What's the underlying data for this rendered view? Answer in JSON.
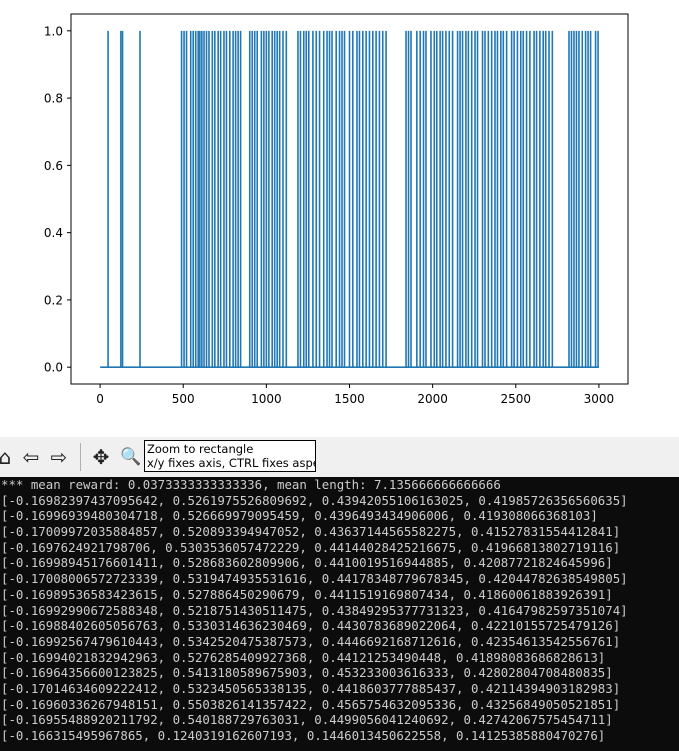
{
  "chart_data": {
    "type": "line",
    "xlim": [
      -175,
      3175
    ],
    "ylim": [
      -0.05,
      1.05
    ],
    "xticks": [
      0,
      500,
      1000,
      1500,
      2000,
      2500,
      3000
    ],
    "xtick_labels": [
      "0",
      "500",
      "1000",
      "1500",
      "2000",
      "2500",
      "3000"
    ],
    "yticks": [
      0.0,
      0.2,
      0.4,
      0.6,
      0.8,
      1.0
    ],
    "ytick_labels": [
      "0.0",
      "0.2",
      "0.4",
      "0.6",
      "0.8",
      "1.0"
    ],
    "line_color": "#1f77b4",
    "grid": false,
    "baseline": 0,
    "x_range": [
      0,
      3000
    ],
    "spike_value": 1,
    "spike_x": [
      48,
      125,
      135,
      240,
      490,
      505,
      520,
      545,
      560,
      575,
      590,
      600,
      612,
      625,
      640,
      655,
      675,
      690,
      710,
      725,
      745,
      760,
      780,
      800,
      815,
      830,
      845,
      900,
      915,
      930,
      945,
      970,
      985,
      1000,
      1015,
      1035,
      1050,
      1065,
      1080,
      1100,
      1120,
      1190,
      1205,
      1225,
      1240,
      1255,
      1280,
      1300,
      1320,
      1345,
      1365,
      1380,
      1395,
      1420,
      1440,
      1455,
      1470,
      1500,
      1520,
      1545,
      1560,
      1580,
      1600,
      1620,
      1640,
      1660,
      1680,
      1700,
      1720,
      1840,
      1855,
      1870,
      1905,
      1925,
      1945,
      1960,
      1990,
      2010,
      2025,
      2045,
      2060,
      2080,
      2100,
      2120,
      2150,
      2165,
      2180,
      2200,
      2215,
      2235,
      2255,
      2270,
      2300,
      2315,
      2335,
      2355,
      2375,
      2390,
      2410,
      2425,
      2445,
      2475,
      2490,
      2510,
      2530,
      2545,
      2565,
      2585,
      2610,
      2625,
      2645,
      2665,
      2680,
      2700,
      2720,
      2820,
      2835,
      2850,
      2865,
      2880,
      2900,
      2920,
      2935,
      2950,
      2980,
      2995
    ]
  },
  "toolbar": {
    "buttons": [
      {
        "name": "home-icon",
        "glyph": "⌂"
      },
      {
        "name": "back-icon",
        "glyph": "⇦"
      },
      {
        "name": "forward-icon",
        "glyph": "⇨"
      },
      {
        "name": "pan-icon",
        "glyph": "✥"
      },
      {
        "name": "zoom-icon",
        "glyph": "🔍"
      }
    ],
    "tooltip": {
      "line1": "Zoom to rectangle",
      "line2": "x/y fixes axis, CTRL fixes aspect"
    }
  },
  "console": {
    "lines": [
      "*** mean reward: 0.0373333333333336, mean length: 7.135666666666666",
      "[-0.16982397437095642, 0.5261975526809692, 0.43942055106163025, 0.41985726356560635]",
      "[-0.16996939480304718, 0.526669979095459, 0.4396493434906006, 0.419308066368103]",
      "[-0.17009972035884857, 0.520893394947052, 0.43637144565582275, 0.41527831554412841]",
      "[-0.1697624921798706, 0.5303536057472229, 0.44144028425216675, 0.41966813802719116]",
      "[-0.16998945176601411, 0.528683602809906, 0.4410019516944885, 0.42087721824645996]",
      "[-0.17008006572723339, 0.5319474935531616, 0.44178348779678345, 0.42044782638549805]",
      "[-0.16989536583423615, 0.527886450290679, 0.4411519169807434, 0.41860061883926391]",
      "[-0.16992990672588348, 0.5218751430511475, 0.43849295377731323, 0.41647982597351074]",
      "[-0.16988402605056763, 0.5330314636230469, 0.4430783689022064, 0.42210155725479126]",
      "[-0.16992567479610443, 0.5342520475387573, 0.4446692168712616, 0.42354613542556761]",
      "[-0.16994021832942963, 0.5276285409927368, 0.44121253490448, 0.41898083686828613]",
      "[-0.16964356600123825, 0.5413180589675903, 0.453233003616333, 0.42802804708480835]",
      "[-0.17014634609222412, 0.5323450565338135, 0.4418603777885437, 0.42114394903182983]",
      "[-0.16960336267948151, 0.5503826141357422, 0.4565754632095336, 0.43256849050521851]",
      "[-0.16955488920211792, 0.540188729763031, 0.4499056041240692, 0.42742067575454711]",
      "[-0.166315495967865, 0.1240319162607193, 0.1446013450622558, 0.14125385880470276]"
    ]
  }
}
